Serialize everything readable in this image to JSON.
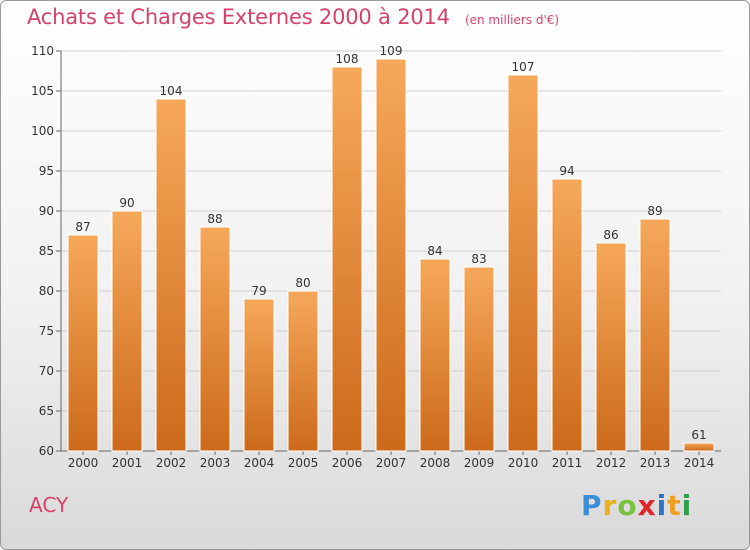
{
  "header": {
    "title": "Achats et Charges Externes 2000 à 2014",
    "unit": "(en milliers d'€)"
  },
  "commune": "ACY",
  "logo": {
    "text": "Proxiti",
    "letter_colors": [
      "#3a8fd6",
      "#e8b21c",
      "#7cc242",
      "#e3242b",
      "#2f74c0",
      "#f0a020",
      "#2e9e4a"
    ]
  },
  "colors": {
    "title": "#d4426a",
    "bar_light": "#f6a85a",
    "bar_dark": "#cc6a1a",
    "grid": "#d0d0d0"
  },
  "chart_data": {
    "type": "bar",
    "categories": [
      "2000",
      "2001",
      "2002",
      "2003",
      "2004",
      "2005",
      "2006",
      "2007",
      "2008",
      "2009",
      "2010",
      "2011",
      "2012",
      "2013",
      "2014"
    ],
    "values": [
      87,
      90,
      104,
      88,
      79,
      80,
      108,
      109,
      84,
      83,
      107,
      94,
      86,
      89,
      61
    ],
    "ylim": [
      60,
      110
    ],
    "yticks": [
      60,
      65,
      70,
      75,
      80,
      85,
      90,
      95,
      100,
      105,
      110
    ],
    "grid": true,
    "value_labels": true
  }
}
